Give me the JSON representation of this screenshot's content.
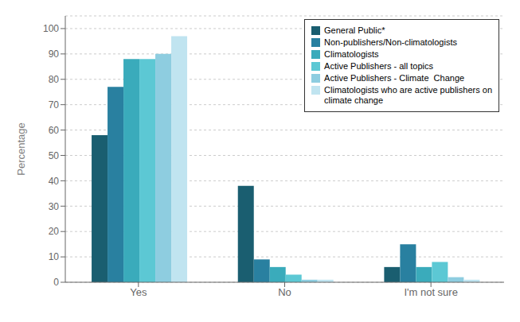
{
  "chart_data": {
    "type": "bar",
    "categories": [
      "Yes",
      "No",
      "I'm not sure"
    ],
    "series": [
      {
        "name": "General Public*",
        "color": "#1a5e70",
        "values": [
          58,
          38,
          6
        ]
      },
      {
        "name": "Non-publishers/Non-climatologists",
        "color": "#2980a0",
        "values": [
          77,
          9,
          15
        ]
      },
      {
        "name": "Climatologists",
        "color": "#3aabbb",
        "values": [
          88,
          6,
          6
        ]
      },
      {
        "name": "Active Publishers - all topics",
        "color": "#5cc8d4",
        "values": [
          88,
          3,
          8
        ]
      },
      {
        "name": "Active Publishers - Climate  Change",
        "color": "#8ecde0",
        "values": [
          90,
          1,
          2
        ]
      },
      {
        "name": "Climatologists who are active publishers on\nclimate change",
        "color": "#c0e4f0",
        "values": [
          97,
          1,
          1
        ]
      }
    ],
    "ylabel": "Percentage",
    "ylim": [
      0,
      105
    ],
    "yticks": [
      0,
      10,
      20,
      30,
      40,
      50,
      60,
      70,
      80,
      90,
      100
    ],
    "grid": true,
    "legend": "upper right"
  }
}
